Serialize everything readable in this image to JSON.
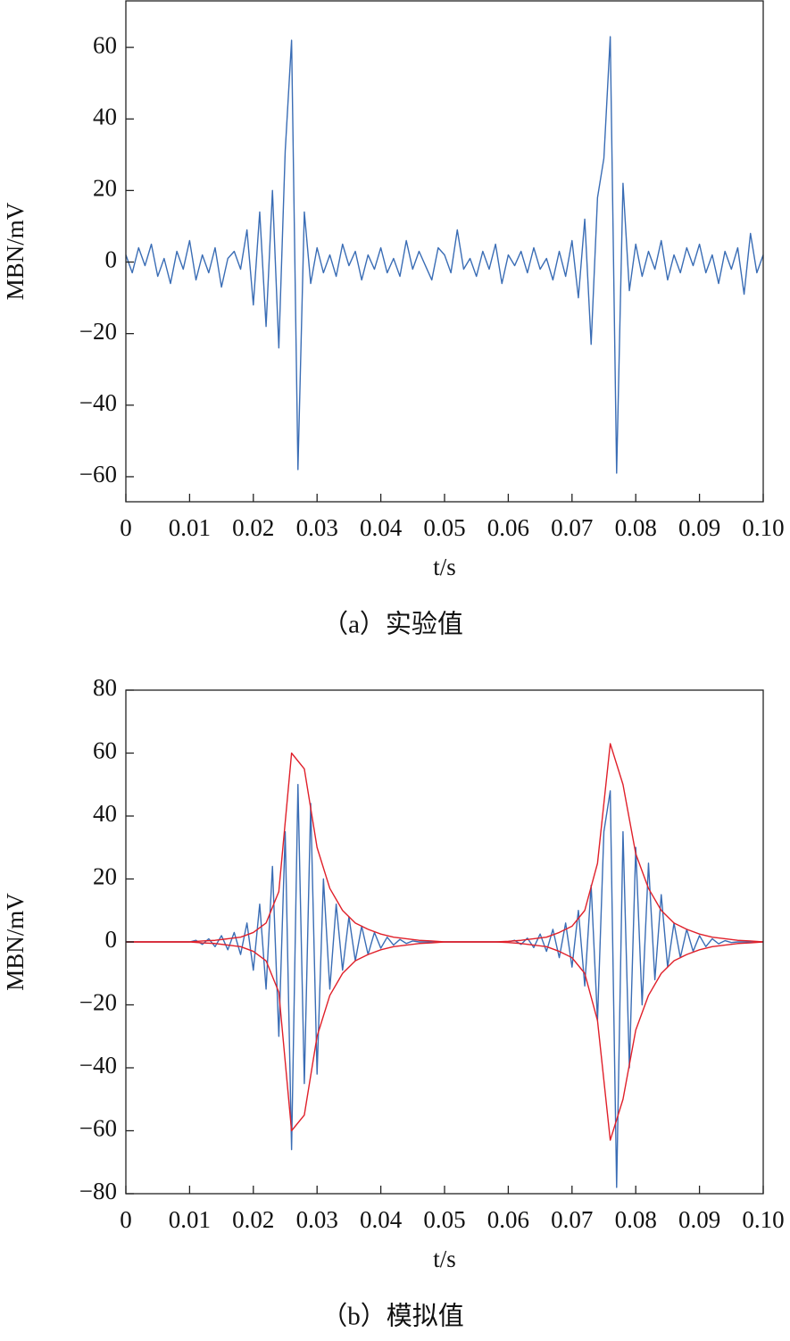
{
  "chart_data": [
    {
      "type": "line",
      "caption": "（a）实验值",
      "xlabel": "t/s",
      "ylabel": "MBN/mV",
      "x": [
        0,
        0.001,
        0.002,
        0.003,
        0.004,
        0.005,
        0.006,
        0.007,
        0.008,
        0.009,
        0.01,
        0.011,
        0.012,
        0.013,
        0.014,
        0.015,
        0.016,
        0.017,
        0.018,
        0.019,
        0.02,
        0.021,
        0.022,
        0.023,
        0.024,
        0.025,
        0.026,
        0.027,
        0.028,
        0.029,
        0.03,
        0.031,
        0.032,
        0.033,
        0.034,
        0.035,
        0.036,
        0.037,
        0.038,
        0.039,
        0.04,
        0.041,
        0.042,
        0.043,
        0.044,
        0.045,
        0.046,
        0.047,
        0.048,
        0.049,
        0.05,
        0.051,
        0.052,
        0.053,
        0.054,
        0.055,
        0.056,
        0.057,
        0.058,
        0.059,
        0.06,
        0.061,
        0.062,
        0.063,
        0.064,
        0.065,
        0.066,
        0.067,
        0.068,
        0.069,
        0.07,
        0.071,
        0.072,
        0.073,
        0.074,
        0.075,
        0.076,
        0.077,
        0.078,
        0.079,
        0.08,
        0.081,
        0.082,
        0.083,
        0.084,
        0.085,
        0.086,
        0.087,
        0.088,
        0.089,
        0.09,
        0.091,
        0.092,
        0.093,
        0.094,
        0.095,
        0.096,
        0.097,
        0.098,
        0.099,
        0.1
      ],
      "series": [
        {
          "color": "#3a6db5",
          "values": [
            2,
            -3,
            4,
            -1,
            5,
            -4,
            1,
            -6,
            3,
            -2,
            6,
            -5,
            2,
            -3,
            4,
            -7,
            1,
            3,
            -2,
            9,
            -12,
            14,
            -18,
            20,
            -24,
            31,
            62,
            -58,
            14,
            -6,
            4,
            -3,
            2,
            -4,
            5,
            -1,
            3,
            -5,
            2,
            -2,
            4,
            -3,
            1,
            -4,
            6,
            -2,
            3,
            -1,
            -5,
            4,
            2,
            -3,
            9,
            -2,
            1,
            -4,
            3,
            -2,
            5,
            -6,
            2,
            -1,
            3,
            -3,
            4,
            -2,
            1,
            -5,
            3,
            -4,
            6,
            -10,
            12,
            -23,
            18,
            29,
            63,
            -59,
            22,
            -8,
            5,
            -4,
            3,
            -2,
            6,
            -5,
            2,
            -3,
            4,
            -1,
            5,
            -3,
            2,
            -6,
            3,
            -2,
            4,
            -9,
            8,
            -3,
            2
          ]
        }
      ],
      "xlim": [
        0,
        0.1
      ],
      "ylim": [
        -67,
        73
      ],
      "xticks": [
        0,
        0.01,
        0.02,
        0.03,
        0.04,
        0.05,
        0.06,
        0.07,
        0.08,
        0.09,
        {
          "value": 0.1,
          "label": "0.10"
        }
      ],
      "yticks": [
        {
          "value": -60,
          "label": "−60"
        },
        {
          "value": -40,
          "label": "−40"
        },
        {
          "value": -20,
          "label": "−20"
        },
        0,
        20,
        40,
        60
      ]
    },
    {
      "type": "line",
      "caption": "（b）模拟值",
      "xlabel": "t/s",
      "ylabel": "MBN/mV",
      "x": [
        0,
        0.001,
        0.002,
        0.003,
        0.004,
        0.005,
        0.006,
        0.007,
        0.008,
        0.009,
        0.01,
        0.011,
        0.012,
        0.013,
        0.014,
        0.015,
        0.016,
        0.017,
        0.018,
        0.019,
        0.02,
        0.021,
        0.022,
        0.023,
        0.024,
        0.025,
        0.026,
        0.027,
        0.028,
        0.029,
        0.03,
        0.031,
        0.032,
        0.033,
        0.034,
        0.035,
        0.036,
        0.037,
        0.038,
        0.039,
        0.04,
        0.041,
        0.042,
        0.043,
        0.044,
        0.045,
        0.046,
        0.047,
        0.048,
        0.049,
        0.05,
        0.051,
        0.052,
        0.053,
        0.054,
        0.055,
        0.056,
        0.057,
        0.058,
        0.059,
        0.06,
        0.061,
        0.062,
        0.063,
        0.064,
        0.065,
        0.066,
        0.067,
        0.068,
        0.069,
        0.07,
        0.071,
        0.072,
        0.073,
        0.074,
        0.075,
        0.076,
        0.077,
        0.078,
        0.079,
        0.08,
        0.081,
        0.082,
        0.083,
        0.084,
        0.085,
        0.086,
        0.087,
        0.088,
        0.089,
        0.09,
        0.091,
        0.092,
        0.093,
        0.094,
        0.095,
        0.096,
        0.097,
        0.098,
        0.099,
        0.1
      ],
      "series": [
        {
          "color": "#3a6db5",
          "values": [
            0,
            0,
            0,
            0,
            0,
            0,
            0,
            0,
            0,
            0,
            0,
            0.5,
            -0.8,
            1,
            -1.5,
            2,
            -2.5,
            3,
            -4,
            6,
            -9,
            12,
            -15,
            24,
            -30,
            35,
            -66,
            50,
            -45,
            44,
            -42,
            20,
            -15,
            12,
            -9,
            8,
            -6,
            5,
            -4,
            3,
            -2,
            1.5,
            -1,
            0.8,
            -0.5,
            0.3,
            0,
            0,
            0,
            0,
            0,
            0,
            0,
            0,
            0,
            0,
            0,
            0,
            0,
            0,
            0,
            0.5,
            -0.8,
            1.2,
            -1.8,
            2.5,
            -3,
            4,
            -5,
            6,
            -8,
            10,
            -14,
            18,
            -25,
            35,
            48,
            -78,
            35,
            -40,
            30,
            -20,
            25,
            -12,
            15,
            -8,
            6,
            -5,
            4,
            -3,
            2,
            -1.5,
            1,
            -0.6,
            0.4,
            -0.2,
            0,
            0,
            0,
            0,
            0
          ]
        },
        {
          "color": "#e0202a",
          "x": [
            0,
            0.002,
            0.004,
            0.006,
            0.008,
            0.01,
            0.012,
            0.014,
            0.016,
            0.018,
            0.02,
            0.022,
            0.024,
            0.026,
            0.028,
            0.03,
            0.032,
            0.034,
            0.036,
            0.038,
            0.04,
            0.042,
            0.044,
            0.046,
            0.048,
            0.05,
            0.052,
            0.054,
            0.056,
            0.058,
            0.06,
            0.062,
            0.064,
            0.066,
            0.068,
            0.07,
            0.072,
            0.074,
            0.076,
            0.078,
            0.08,
            0.082,
            0.084,
            0.086,
            0.088,
            0.09,
            0.092,
            0.094,
            0.096,
            0.098,
            0.1
          ],
          "values": [
            0,
            0,
            0,
            0,
            0,
            0,
            0.3,
            0.5,
            1,
            1.5,
            3,
            6,
            16,
            60,
            55,
            30,
            17,
            10,
            6,
            4,
            2.5,
            1.5,
            1,
            0.5,
            0.3,
            0,
            0,
            0,
            0,
            0,
            0.2,
            0.5,
            1,
            1.5,
            3,
            5,
            10,
            25,
            63,
            50,
            28,
            17,
            10,
            6,
            4,
            2.5,
            1.5,
            1,
            0.5,
            0.3,
            0
          ]
        },
        {
          "color": "#e0202a",
          "x": [
            0,
            0.002,
            0.004,
            0.006,
            0.008,
            0.01,
            0.012,
            0.014,
            0.016,
            0.018,
            0.02,
            0.022,
            0.024,
            0.026,
            0.028,
            0.03,
            0.032,
            0.034,
            0.036,
            0.038,
            0.04,
            0.042,
            0.044,
            0.046,
            0.048,
            0.05,
            0.052,
            0.054,
            0.056,
            0.058,
            0.06,
            0.062,
            0.064,
            0.066,
            0.068,
            0.07,
            0.072,
            0.074,
            0.076,
            0.078,
            0.08,
            0.082,
            0.084,
            0.086,
            0.088,
            0.09,
            0.092,
            0.094,
            0.096,
            0.098,
            0.1
          ],
          "values": [
            0,
            0,
            0,
            0,
            0,
            0,
            -0.3,
            -0.5,
            -1,
            -1.5,
            -3,
            -6,
            -16,
            -60,
            -55,
            -30,
            -17,
            -10,
            -6,
            -4,
            -2.5,
            -1.5,
            -1,
            -0.5,
            -0.3,
            0,
            0,
            0,
            0,
            0,
            -0.2,
            -0.5,
            -1,
            -1.5,
            -3,
            -5,
            -10,
            -25,
            -63,
            -50,
            -28,
            -17,
            -10,
            -6,
            -4,
            -2.5,
            -1.5,
            -1,
            -0.5,
            -0.3,
            0
          ]
        }
      ],
      "xlim": [
        0,
        0.1
      ],
      "ylim": [
        -80,
        80
      ],
      "xticks": [
        0,
        0.01,
        0.02,
        0.03,
        0.04,
        0.05,
        0.06,
        0.07,
        0.08,
        0.09,
        {
          "value": 0.1,
          "label": "0.10"
        }
      ],
      "yticks": [
        {
          "value": -80,
          "label": "−80"
        },
        {
          "value": -60,
          "label": "−60"
        },
        {
          "value": -40,
          "label": "−40"
        },
        {
          "value": -20,
          "label": "−20"
        },
        0,
        20,
        40,
        60,
        80
      ]
    }
  ]
}
